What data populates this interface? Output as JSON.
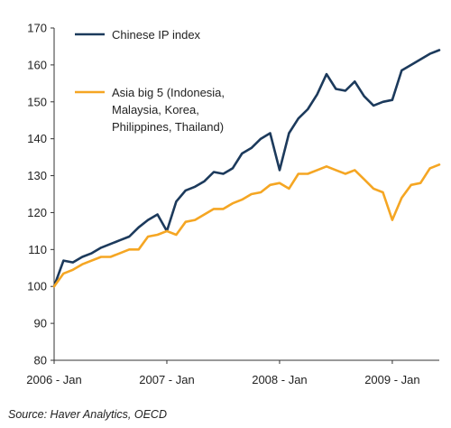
{
  "chart_data": {
    "type": "line",
    "ylim": [
      80,
      170
    ],
    "xlim": [
      0,
      41
    ],
    "y_ticks": [
      80,
      90,
      100,
      110,
      120,
      130,
      140,
      150,
      160,
      170
    ],
    "x_ticks": [
      {
        "label": "2006 - Jan",
        "x": 0
      },
      {
        "label": "2007 - Jan",
        "x": 12
      },
      {
        "label": "2008 - Jan",
        "x": 24
      },
      {
        "label": "2009 - Jan",
        "x": 36
      }
    ],
    "grid": false,
    "legend_position": "top-left",
    "series": [
      {
        "name": "Chinese IP index",
        "color": "#1c3a5c",
        "x": [
          0,
          1,
          2,
          3,
          4,
          5,
          6,
          7,
          8,
          9,
          10,
          11,
          12,
          13,
          14,
          15,
          16,
          17,
          18,
          19,
          20,
          21,
          22,
          23,
          24,
          25,
          26,
          27,
          28,
          29,
          30,
          31,
          32,
          33,
          34,
          35,
          36,
          37,
          38,
          39,
          40,
          41
        ],
        "values": [
          100,
          107,
          106.5,
          108,
          109,
          110.5,
          111.5,
          112.5,
          113.5,
          116,
          118,
          119.5,
          115,
          123,
          126,
          127,
          128.5,
          131,
          130.5,
          132,
          136,
          137.5,
          140,
          141.5,
          131.5,
          141.5,
          145.5,
          148,
          152,
          157.5,
          153.5,
          153,
          155.5,
          151.5,
          149,
          150,
          150.5,
          158.5,
          160,
          161.5,
          163,
          164
        ]
      },
      {
        "name": "Asia big 5 (Indonesia, Malaysia, Korea, Philippines, Thailand)",
        "legend_lines": [
          "Asia big 5 (Indonesia,",
          "Malaysia, Korea,",
          "Philippines, Thailand)"
        ],
        "color": "#f5a623",
        "x": [
          0,
          1,
          2,
          3,
          4,
          5,
          6,
          7,
          8,
          9,
          10,
          11,
          12,
          13,
          14,
          15,
          16,
          17,
          18,
          19,
          20,
          21,
          22,
          23,
          24,
          25,
          26,
          27,
          28,
          29,
          30,
          31,
          32,
          33,
          34,
          35,
          36,
          37,
          38,
          39,
          40,
          41
        ],
        "values": [
          100,
          103.5,
          104.5,
          106,
          107,
          108,
          108,
          109,
          110,
          110,
          113.5,
          114,
          115,
          114,
          117.5,
          118,
          119.5,
          121,
          121,
          122.5,
          123.5,
          125,
          125.5,
          127.5,
          128,
          126.5,
          130.5,
          130.5,
          131.5,
          132.5,
          131.5,
          130.5,
          131.5,
          129,
          126.5,
          125.5,
          118,
          124,
          127.5,
          128,
          132,
          133
        ]
      }
    ]
  },
  "source": "Source: Haver Analytics, OECD"
}
